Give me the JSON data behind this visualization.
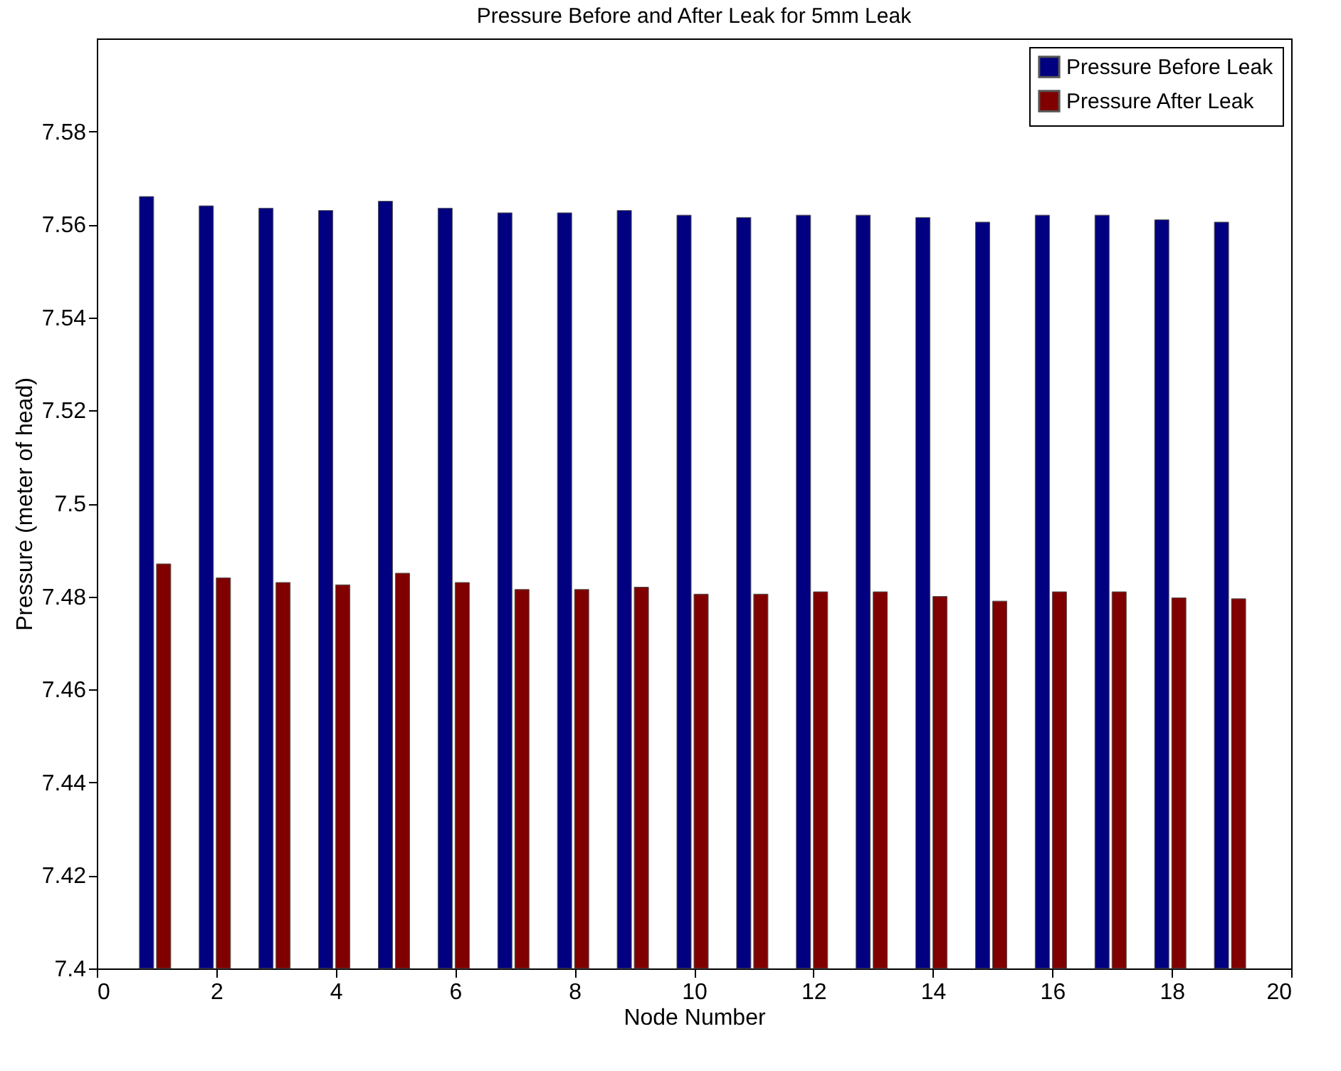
{
  "chart_data": {
    "type": "bar",
    "title": "Pressure Before and After Leak for 5mm Leak",
    "xlabel": "Node Number",
    "ylabel": "Pressure (meter of head)",
    "x": [
      1,
      2,
      3,
      4,
      5,
      6,
      7,
      8,
      9,
      10,
      11,
      12,
      13,
      14,
      15,
      16,
      17,
      18,
      19
    ],
    "series": [
      {
        "name": "Pressure Before Leak",
        "color": "#000080",
        "values": [
          7.566,
          7.564,
          7.5635,
          7.563,
          7.565,
          7.5635,
          7.5625,
          7.5625,
          7.563,
          7.562,
          7.5615,
          7.562,
          7.562,
          7.5615,
          7.5605,
          7.562,
          7.562,
          7.561,
          7.5605
        ]
      },
      {
        "name": "Pressure After Leak",
        "color": "#800000",
        "values": [
          7.487,
          7.484,
          7.483,
          7.4825,
          7.485,
          7.483,
          7.4815,
          7.4815,
          7.482,
          7.4805,
          7.4805,
          7.481,
          7.481,
          7.48,
          7.479,
          7.481,
          7.481,
          7.4797,
          7.4795
        ]
      }
    ],
    "xlim": [
      0,
      20
    ],
    "xticks": [
      0,
      2,
      4,
      6,
      8,
      10,
      12,
      14,
      16,
      18,
      20
    ],
    "ylim": [
      7.4,
      7.6
    ],
    "yticks": [
      7.4,
      7.42,
      7.44,
      7.46,
      7.48,
      7.5,
      7.52,
      7.54,
      7.56,
      7.58
    ],
    "legend": "top right",
    "grid": false
  }
}
